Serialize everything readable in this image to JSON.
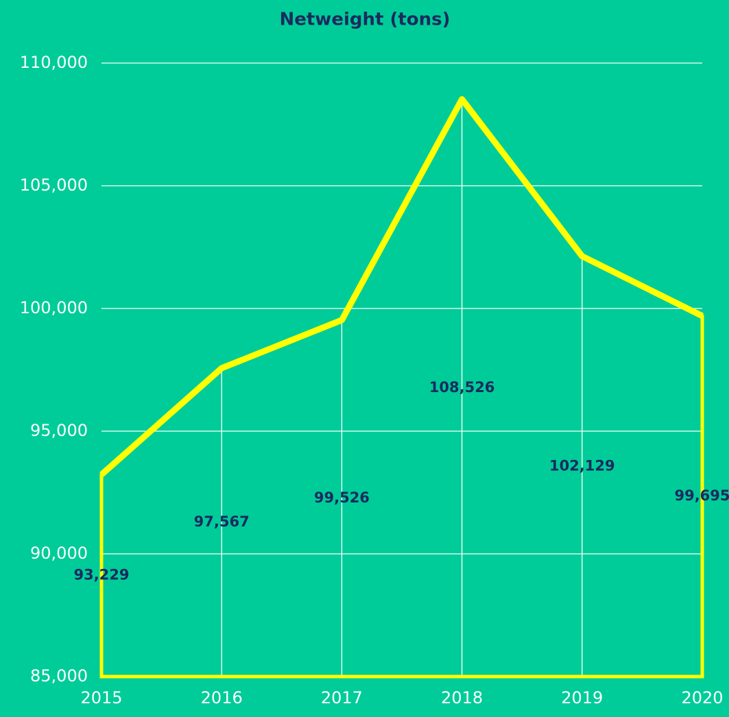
{
  "chart_data": {
    "type": "area",
    "title": "Netweight (tons)",
    "categories": [
      "2015",
      "2016",
      "2017",
      "2018",
      "2019",
      "2020"
    ],
    "series": [
      {
        "name": "Netweight",
        "color": "#ffff00",
        "values": [
          93229,
          97567,
          99526,
          108526,
          102129,
          99695
        ],
        "value_labels": [
          "93,229",
          "97,567",
          "99,526",
          "108,526",
          "102,129",
          "99,695"
        ]
      }
    ],
    "ylim": [
      85000,
      110000
    ],
    "yticks": [
      {
        "value": 85000,
        "label": "85,000"
      },
      {
        "value": 90000,
        "label": "90,000"
      },
      {
        "value": 95000,
        "label": "95,000"
      },
      {
        "value": 100000,
        "label": "100,000"
      },
      {
        "value": 105000,
        "label": "105,000"
      },
      {
        "value": 110000,
        "label": "110,000"
      }
    ],
    "grid": true
  }
}
